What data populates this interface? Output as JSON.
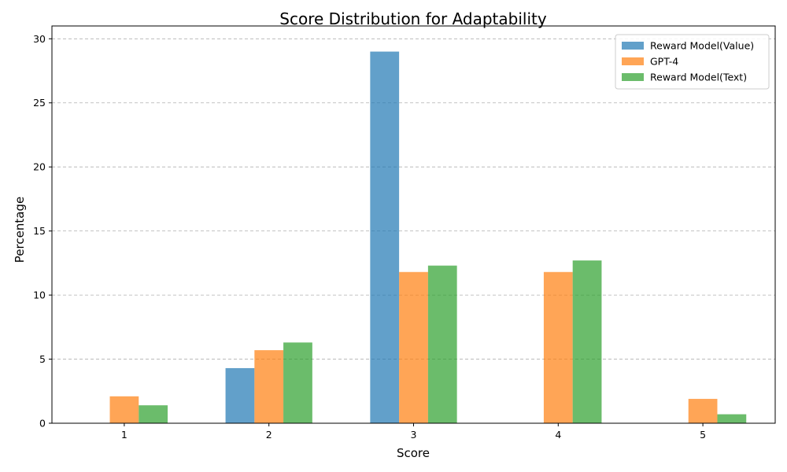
{
  "chart_data": {
    "type": "bar",
    "title": "Score Distribution for Adaptability",
    "xlabel": "Score",
    "ylabel": "Percentage",
    "categories": [
      "1",
      "2",
      "3",
      "4",
      "5"
    ],
    "ylim": [
      0,
      31
    ],
    "yticks": [
      0,
      5,
      10,
      15,
      20,
      25,
      30
    ],
    "grid": "y-dashed",
    "legend_position": "top-right",
    "series": [
      {
        "name": "Reward Model(Value)",
        "color": "#1f77b4",
        "values": [
          0,
          4.3,
          29.0,
          0,
          0
        ]
      },
      {
        "name": "GPT-4",
        "color": "#ff7f0e",
        "values": [
          2.1,
          5.7,
          11.8,
          11.8,
          1.9
        ]
      },
      {
        "name": "Reward Model(Text)",
        "color": "#2ca02c",
        "values": [
          1.4,
          6.3,
          12.3,
          12.7,
          0.7
        ]
      }
    ]
  }
}
